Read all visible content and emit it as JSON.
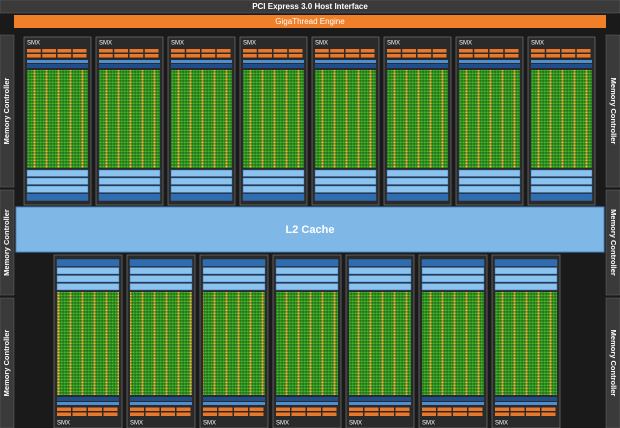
{
  "header": {
    "host_interface": "PCI Express 3.0 Host Interface",
    "scheduler": "GigaThread Engine"
  },
  "memory_controllers": {
    "left": [
      "Memory Controller",
      "Memory Controller",
      "Memory Controller"
    ],
    "right": [
      "Memory Controller",
      "Memory Controller",
      "Memory Controller"
    ]
  },
  "l2_cache": "L2 Cache",
  "smx": {
    "top": [
      "SMX",
      "SMX",
      "SMX",
      "SMX",
      "SMX",
      "SMX",
      "SMX",
      "SMX"
    ],
    "bottom": [
      "SMX",
      "SMX",
      "SMX",
      "SMX",
      "SMX",
      "SMX",
      "SMX"
    ]
  }
}
